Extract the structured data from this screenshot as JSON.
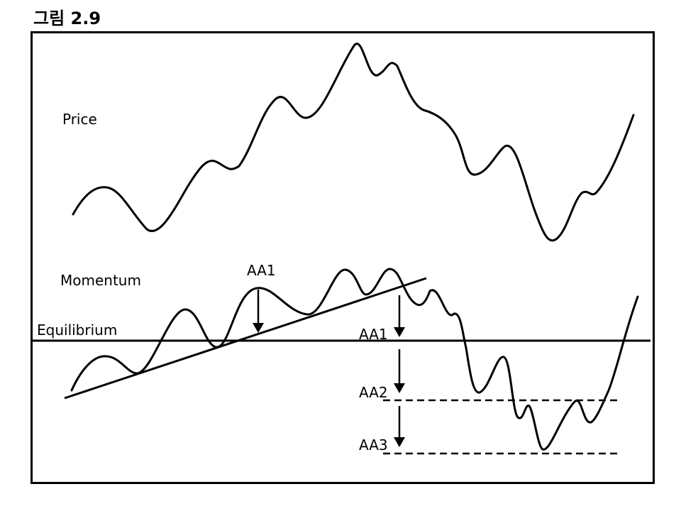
{
  "figure": {
    "title": "그림 2.9",
    "labels": {
      "price": "Price",
      "momentum": "Momentum",
      "equilibrium": "Equilibrium",
      "aa1_top": "AA1",
      "aa1_right": "AA1",
      "aa2": "AA2",
      "aa3": "AA3"
    }
  }
}
